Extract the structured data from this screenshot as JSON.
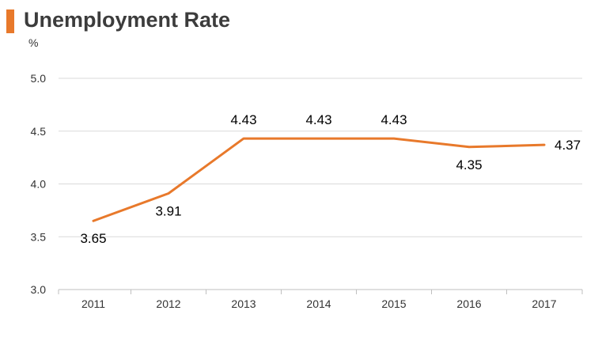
{
  "header": {
    "title": "Unemployment Rate",
    "unit": "%"
  },
  "colors": {
    "accent": "#e8792b",
    "line": "#e8792b",
    "grid": "#d9d9d9",
    "axis": "#bfbfbf"
  },
  "chart_data": {
    "type": "line",
    "title": "Unemployment Rate",
    "ylabel": "%",
    "xlabel": "",
    "categories": [
      "2011",
      "2012",
      "2013",
      "2014",
      "2015",
      "2016",
      "2017"
    ],
    "series": [
      {
        "values": [
          3.65,
          3.91,
          4.43,
          4.43,
          4.43,
          4.35,
          4.37
        ],
        "labels": [
          "3.65",
          "3.91",
          "4.43",
          "4.43",
          "4.43",
          "4.35",
          "4.37"
        ]
      }
    ],
    "ylim": [
      3.0,
      5.0
    ],
    "yticks": [
      "3.0",
      "3.5",
      "4.0",
      "4.5",
      "5.0"
    ],
    "grid": true,
    "legend": "none"
  }
}
